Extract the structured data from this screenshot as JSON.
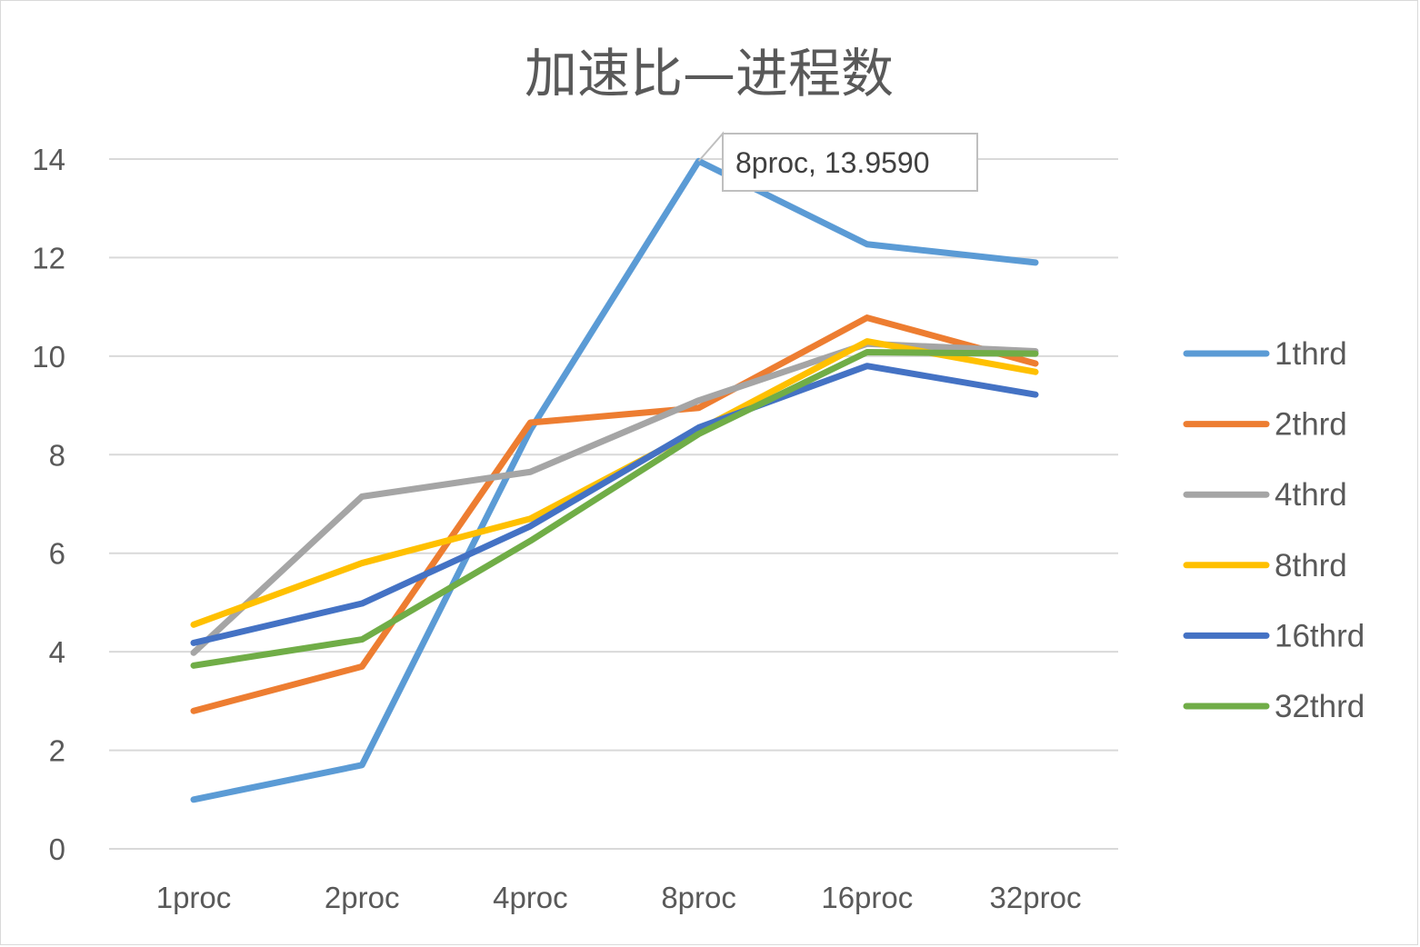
{
  "chart_data": {
    "type": "line",
    "title": "加速比—进程数",
    "xlabel": "",
    "ylabel": "",
    "categories": [
      "1proc",
      "2proc",
      "4proc",
      "8proc",
      "16proc",
      "32proc"
    ],
    "ylim": [
      0,
      14
    ],
    "yticks": [
      0,
      2,
      4,
      6,
      8,
      10,
      12,
      14
    ],
    "grid": true,
    "legend_position": "right",
    "series": [
      {
        "name": "1thrd",
        "color": "#5B9BD5",
        "values": [
          1.0,
          1.7,
          8.5,
          13.959,
          12.27,
          11.9
        ]
      },
      {
        "name": "2thrd",
        "color": "#ED7D31",
        "values": [
          2.8,
          3.7,
          8.65,
          8.95,
          10.78,
          9.85
        ]
      },
      {
        "name": "4thrd",
        "color": "#A5A5A5",
        "values": [
          3.98,
          7.15,
          7.65,
          9.1,
          10.25,
          10.1
        ]
      },
      {
        "name": "8thrd",
        "color": "#FFC000",
        "values": [
          4.55,
          5.8,
          6.7,
          8.5,
          10.3,
          9.68
        ]
      },
      {
        "name": "16thrd",
        "color": "#4472C4",
        "values": [
          4.18,
          4.98,
          6.55,
          8.55,
          9.8,
          9.22
        ]
      },
      {
        "name": "32thrd",
        "color": "#70AD47",
        "values": [
          3.72,
          4.25,
          6.25,
          8.42,
          10.08,
          10.05
        ]
      }
    ],
    "annotation": {
      "text": "8proc, 13.9590",
      "series": "1thrd",
      "category": "8proc",
      "value": 13.959
    }
  }
}
